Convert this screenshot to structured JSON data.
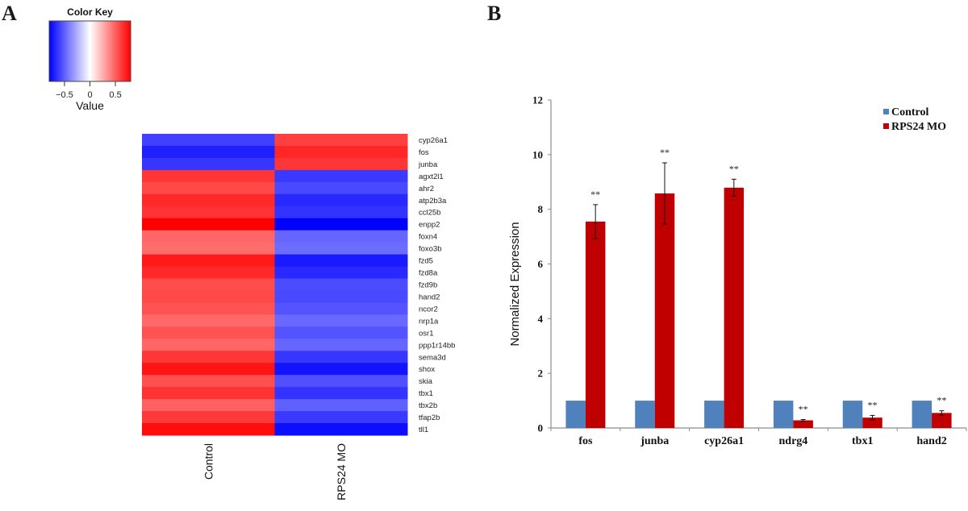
{
  "panels": {
    "a_label": "A",
    "b_label": "B"
  },
  "chart_data": [
    {
      "type": "heatmap",
      "title": "",
      "color_key": {
        "title": "Color Key",
        "xlabel": "Value",
        "ticks": [
          -0.5,
          0,
          0.5
        ],
        "tick_labels": [
          "−0.5",
          "0",
          "0.5"
        ],
        "range": [
          -0.8,
          0.8
        ],
        "colors": {
          "low": "#0000ff",
          "mid": "#ffffff",
          "high": "#ff0000"
        }
      },
      "columns": [
        "Control",
        "RPS24 MO"
      ],
      "rows": [
        "cyp26a1",
        "fos",
        "junba",
        "agxt2l1",
        "ahr2",
        "atp2b3a",
        "ccl25b",
        "enpp2",
        "foxn4",
        "foxo3b",
        "fzd5",
        "fzd8a",
        "fzd9b",
        "hand2",
        "ncor2",
        "nrp1a",
        "osr1",
        "ppp1r14bb",
        "sema3d",
        "shox",
        "skia",
        "tbx1",
        "tbx2b",
        "tfap2b",
        "tll1"
      ],
      "values": [
        [
          -0.6,
          0.6
        ],
        [
          -0.7,
          0.68
        ],
        [
          -0.63,
          0.63
        ],
        [
          0.63,
          -0.62
        ],
        [
          0.57,
          -0.57
        ],
        [
          0.67,
          -0.67
        ],
        [
          0.64,
          -0.64
        ],
        [
          0.8,
          -0.8
        ],
        [
          0.48,
          -0.48
        ],
        [
          0.46,
          -0.46
        ],
        [
          0.72,
          -0.72
        ],
        [
          0.67,
          -0.67
        ],
        [
          0.56,
          -0.56
        ],
        [
          0.57,
          -0.57
        ],
        [
          0.54,
          -0.54
        ],
        [
          0.47,
          -0.47
        ],
        [
          0.54,
          -0.54
        ],
        [
          0.48,
          -0.48
        ],
        [
          0.63,
          -0.63
        ],
        [
          0.74,
          -0.74
        ],
        [
          0.55,
          -0.55
        ],
        [
          0.64,
          -0.64
        ],
        [
          0.5,
          -0.5
        ],
        [
          0.62,
          -0.62
        ],
        [
          0.76,
          -0.76
        ]
      ]
    },
    {
      "type": "bar",
      "title": "",
      "xlabel": "",
      "ylabel": "Normalized Expression",
      "ylim": [
        0,
        12
      ],
      "yticks": [
        0,
        2,
        4,
        6,
        8,
        10,
        12
      ],
      "grid": false,
      "legend_position": "top-right",
      "categories": [
        "fos",
        "junba",
        "cyp26a1",
        "ndrg4",
        "tbx1",
        "hand2"
      ],
      "series": [
        {
          "name": "Control",
          "color": "#4f81bd",
          "values": [
            1,
            1,
            1,
            1,
            1,
            1
          ],
          "errors": [
            0,
            0,
            0,
            0,
            0,
            0
          ]
        },
        {
          "name": "RPS24 MO",
          "color": "#c00000",
          "values": [
            7.55,
            8.58,
            8.79,
            0.28,
            0.38,
            0.55
          ],
          "errors": [
            0.62,
            1.12,
            0.31,
            0.03,
            0.08,
            0.08
          ]
        }
      ],
      "annotations": [
        "**",
        "**",
        "**",
        "**",
        "**",
        "**"
      ]
    }
  ]
}
